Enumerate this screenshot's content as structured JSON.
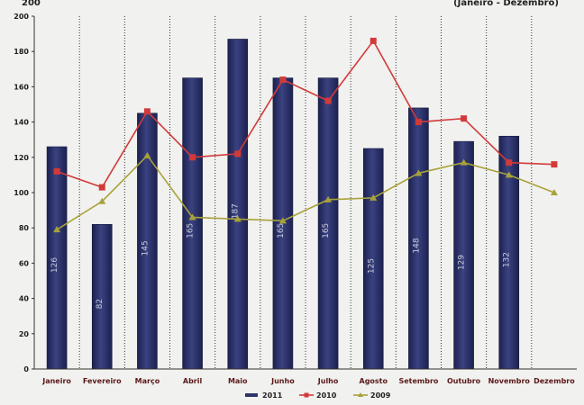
{
  "chart_data": {
    "type": "bar",
    "title_fragments": [
      "200",
      "(Janeiro - Dezembro)"
    ],
    "categories": [
      "Janeiro",
      "Fevereiro",
      "Março",
      "Abril",
      "Maio",
      "Junho",
      "Julho",
      "Agosto",
      "Setembro",
      "Outubro",
      "Novembro",
      "Dezembro"
    ],
    "ylim": [
      0,
      200
    ],
    "yticks": [
      0,
      20,
      40,
      60,
      80,
      100,
      120,
      140,
      160,
      180,
      200
    ],
    "grid": "vertical dotted lines between categories",
    "legend_position": "bottom-center",
    "series": [
      {
        "name": "2011",
        "kind": "bar",
        "color": "#2f356b",
        "values": [
          126,
          82,
          145,
          165,
          187,
          165,
          165,
          125,
          148,
          129,
          132,
          null
        ],
        "labels": [
          "126",
          "82",
          "145",
          "165",
          "187",
          "165",
          "165",
          "125",
          "148",
          "129",
          "132",
          null
        ]
      },
      {
        "name": "2010",
        "kind": "line",
        "color": "#d23a3a",
        "marker": "square",
        "values": [
          112,
          103,
          146,
          120,
          122,
          164,
          152,
          186,
          140,
          142,
          117,
          116
        ]
      },
      {
        "name": "2009",
        "kind": "line",
        "color": "#a8a23a",
        "marker": "triangle",
        "values": [
          79,
          95,
          121,
          86,
          85,
          84,
          96,
          97,
          111,
          117,
          110,
          100
        ]
      }
    ]
  }
}
